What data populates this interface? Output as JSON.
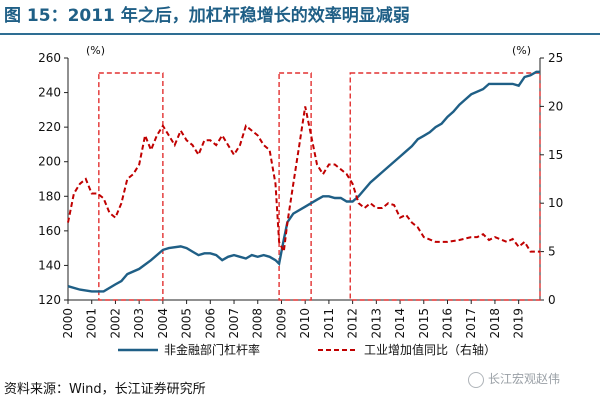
{
  "title": "图 15：2011 年之后，加杠杆稳增长的效率明显减弱",
  "source": "资料来源：Wind，长江证券研究所",
  "watermark": "长江宏观赵伟",
  "colors": {
    "leverage": "#1f5f86",
    "industry": "#c00000",
    "box": "#e23030",
    "title": "#1f5f86"
  },
  "chart_data": {
    "type": "line",
    "left_unit": "(%)",
    "right_unit": "(%)",
    "left_ylim": [
      120,
      260
    ],
    "left_ticks": [
      120,
      140,
      160,
      180,
      200,
      220,
      240,
      260
    ],
    "right_ylim": [
      0,
      25
    ],
    "right_ticks": [
      0,
      5,
      10,
      15,
      20,
      25
    ],
    "xlim": [
      2000,
      2019.9
    ],
    "x_ticks": [
      "2000",
      "2001",
      "2002",
      "2003",
      "2004",
      "2005",
      "2006",
      "2007",
      "2008",
      "2009",
      "2010",
      "2011",
      "2012",
      "2013",
      "2014",
      "2015",
      "2016",
      "2017",
      "2018",
      "2019"
    ],
    "highlight_boxes": [
      [
        2001.3,
        2004.0
      ],
      [
        2008.9,
        2010.25
      ],
      [
        2011.9,
        2019.9
      ]
    ],
    "series": [
      {
        "name": "非金融部门杠杆率",
        "axis": "left",
        "style": "solid",
        "points": [
          [
            2000.0,
            128
          ],
          [
            2000.5,
            126
          ],
          [
            2001.0,
            125
          ],
          [
            2001.5,
            125
          ],
          [
            2002.0,
            129
          ],
          [
            2002.25,
            131
          ],
          [
            2002.5,
            135
          ],
          [
            2003.0,
            138
          ],
          [
            2003.5,
            143
          ],
          [
            2004.0,
            149
          ],
          [
            2004.25,
            150
          ],
          [
            2004.75,
            151
          ],
          [
            2005.0,
            150
          ],
          [
            2005.25,
            148
          ],
          [
            2005.5,
            146
          ],
          [
            2005.75,
            147
          ],
          [
            2006.0,
            147
          ],
          [
            2006.25,
            146
          ],
          [
            2006.5,
            143
          ],
          [
            2006.75,
            145
          ],
          [
            2007.0,
            146
          ],
          [
            2007.25,
            145
          ],
          [
            2007.5,
            144
          ],
          [
            2007.75,
            146
          ],
          [
            2008.0,
            145
          ],
          [
            2008.25,
            146
          ],
          [
            2008.5,
            145
          ],
          [
            2008.75,
            143
          ],
          [
            2008.9,
            141
          ],
          [
            2009.1,
            155
          ],
          [
            2009.25,
            165
          ],
          [
            2009.5,
            170
          ],
          [
            2010.0,
            174
          ],
          [
            2010.5,
            178
          ],
          [
            2010.75,
            180
          ],
          [
            2011.0,
            180
          ],
          [
            2011.25,
            179
          ],
          [
            2011.5,
            179
          ],
          [
            2011.75,
            177
          ],
          [
            2012.0,
            177
          ],
          [
            2012.25,
            180
          ],
          [
            2012.5,
            184
          ],
          [
            2012.75,
            188
          ],
          [
            2013.0,
            191
          ],
          [
            2013.5,
            197
          ],
          [
            2014.0,
            203
          ],
          [
            2014.25,
            206
          ],
          [
            2014.5,
            209
          ],
          [
            2014.75,
            213
          ],
          [
            2015.0,
            215
          ],
          [
            2015.25,
            217
          ],
          [
            2015.5,
            220
          ],
          [
            2015.75,
            222
          ],
          [
            2016.0,
            226
          ],
          [
            2016.25,
            229
          ],
          [
            2016.5,
            233
          ],
          [
            2016.75,
            236
          ],
          [
            2017.0,
            239
          ],
          [
            2017.5,
            242
          ],
          [
            2017.75,
            245
          ],
          [
            2018.0,
            245
          ],
          [
            2018.5,
            245
          ],
          [
            2018.75,
            245
          ],
          [
            2019.0,
            244
          ],
          [
            2019.25,
            249
          ],
          [
            2019.5,
            250
          ],
          [
            2019.75,
            252
          ],
          [
            2019.9,
            252
          ]
        ]
      },
      {
        "name": "工业增加值同比（右轴）",
        "axis": "right",
        "style": "dashed",
        "points": [
          [
            2000.0,
            8
          ],
          [
            2000.25,
            11
          ],
          [
            2000.5,
            12
          ],
          [
            2000.75,
            12.5
          ],
          [
            2001.0,
            11
          ],
          [
            2001.25,
            11
          ],
          [
            2001.5,
            10.5
          ],
          [
            2001.75,
            9
          ],
          [
            2002.0,
            8.5
          ],
          [
            2002.25,
            10
          ],
          [
            2002.5,
            12.5
          ],
          [
            2002.75,
            13
          ],
          [
            2003.0,
            14
          ],
          [
            2003.25,
            17
          ],
          [
            2003.5,
            15.5
          ],
          [
            2003.75,
            17
          ],
          [
            2004.0,
            18
          ],
          [
            2004.25,
            17
          ],
          [
            2004.5,
            16
          ],
          [
            2004.75,
            17.5
          ],
          [
            2005.0,
            16.5
          ],
          [
            2005.25,
            16
          ],
          [
            2005.5,
            15
          ],
          [
            2005.75,
            16.5
          ],
          [
            2006.0,
            16.5
          ],
          [
            2006.25,
            16
          ],
          [
            2006.5,
            17
          ],
          [
            2006.75,
            16
          ],
          [
            2007.0,
            15
          ],
          [
            2007.25,
            16
          ],
          [
            2007.5,
            18
          ],
          [
            2007.75,
            17.5
          ],
          [
            2008.0,
            17
          ],
          [
            2008.25,
            16
          ],
          [
            2008.5,
            15.5
          ],
          [
            2008.75,
            12
          ],
          [
            2008.9,
            6
          ],
          [
            2009.1,
            5
          ],
          [
            2009.25,
            8
          ],
          [
            2009.5,
            12
          ],
          [
            2009.75,
            16
          ],
          [
            2010.0,
            20
          ],
          [
            2010.25,
            17
          ],
          [
            2010.5,
            14
          ],
          [
            2010.75,
            13
          ],
          [
            2011.0,
            14
          ],
          [
            2011.25,
            14
          ],
          [
            2011.5,
            13.5
          ],
          [
            2011.75,
            13
          ],
          [
            2012.0,
            12
          ],
          [
            2012.25,
            10
          ],
          [
            2012.5,
            9.5
          ],
          [
            2012.75,
            10
          ],
          [
            2013.0,
            9.5
          ],
          [
            2013.25,
            9.5
          ],
          [
            2013.5,
            10
          ],
          [
            2013.75,
            9.8
          ],
          [
            2014.0,
            8.5
          ],
          [
            2014.25,
            8.8
          ],
          [
            2014.5,
            8
          ],
          [
            2014.75,
            7.5
          ],
          [
            2015.0,
            6.5
          ],
          [
            2015.5,
            6
          ],
          [
            2016.0,
            6
          ],
          [
            2016.5,
            6.2
          ],
          [
            2017.0,
            6.5
          ],
          [
            2017.25,
            6.5
          ],
          [
            2017.5,
            6.8
          ],
          [
            2017.75,
            6.2
          ],
          [
            2018.0,
            6.5
          ],
          [
            2018.5,
            6
          ],
          [
            2018.75,
            6.3
          ],
          [
            2019.0,
            5.5
          ],
          [
            2019.25,
            6
          ],
          [
            2019.5,
            5
          ],
          [
            2019.75,
            5
          ],
          [
            2019.9,
            5
          ]
        ]
      }
    ]
  }
}
